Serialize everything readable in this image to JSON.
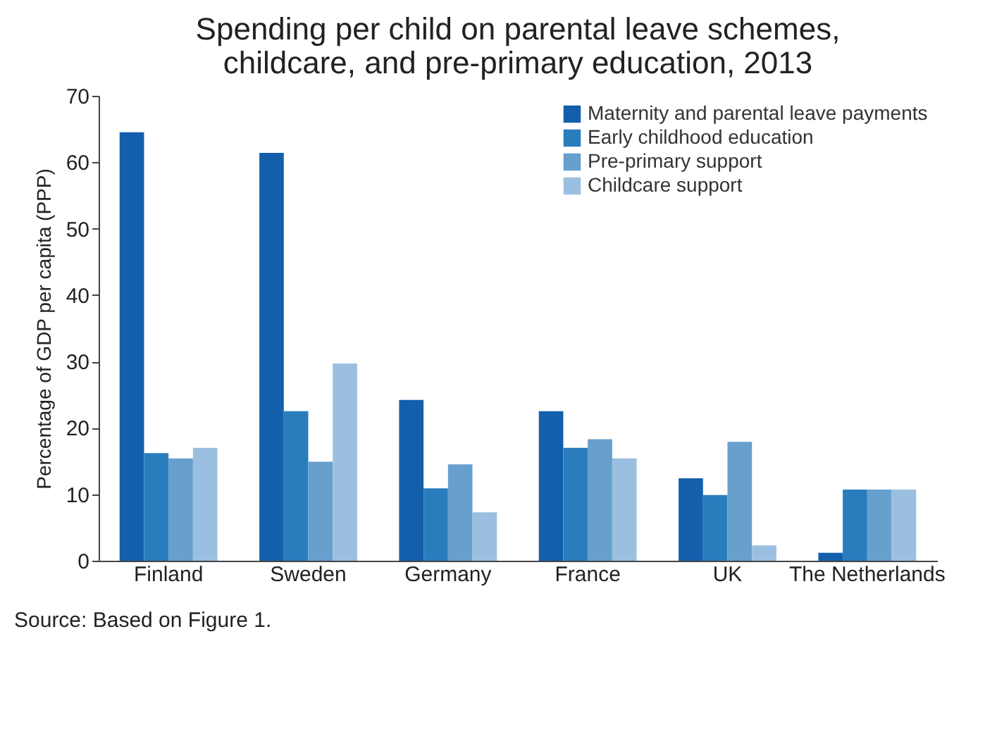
{
  "chart_data": {
    "type": "bar",
    "title": [
      "Spending per child on parental leave schemes,",
      "childcare, and pre-primary education, 2013"
    ],
    "ylabel": "Percentage of GDP per capita (PPP)",
    "categories": [
      "Finland",
      "Sweden",
      "Germany",
      "France",
      "UK",
      "The Netherlands"
    ],
    "series": [
      {
        "name": "Maternity and parental leave payments",
        "color": "#135fab",
        "values": [
          64.5,
          61.4,
          24.2,
          22.5,
          12.4,
          1.2
        ]
      },
      {
        "name": "Early childhood education",
        "color": "#2a7dbc",
        "values": [
          16.2,
          22.5,
          10.9,
          17.0,
          9.9,
          10.7
        ]
      },
      {
        "name": "Pre-primary support",
        "color": "#679fcd",
        "values": [
          15.4,
          14.9,
          14.5,
          18.3,
          17.9,
          10.7
        ]
      },
      {
        "name": "Childcare support",
        "color": "#9bbfe0",
        "values": [
          17.0,
          29.7,
          7.3,
          15.4,
          2.3,
          10.7
        ]
      }
    ],
    "ylim": [
      0,
      70
    ],
    "yticks": [
      0,
      10,
      20,
      30,
      40,
      50,
      60,
      70
    ],
    "grid": false,
    "legend": "top right",
    "annotations": [
      "Source: Based on Figure 1."
    ]
  }
}
